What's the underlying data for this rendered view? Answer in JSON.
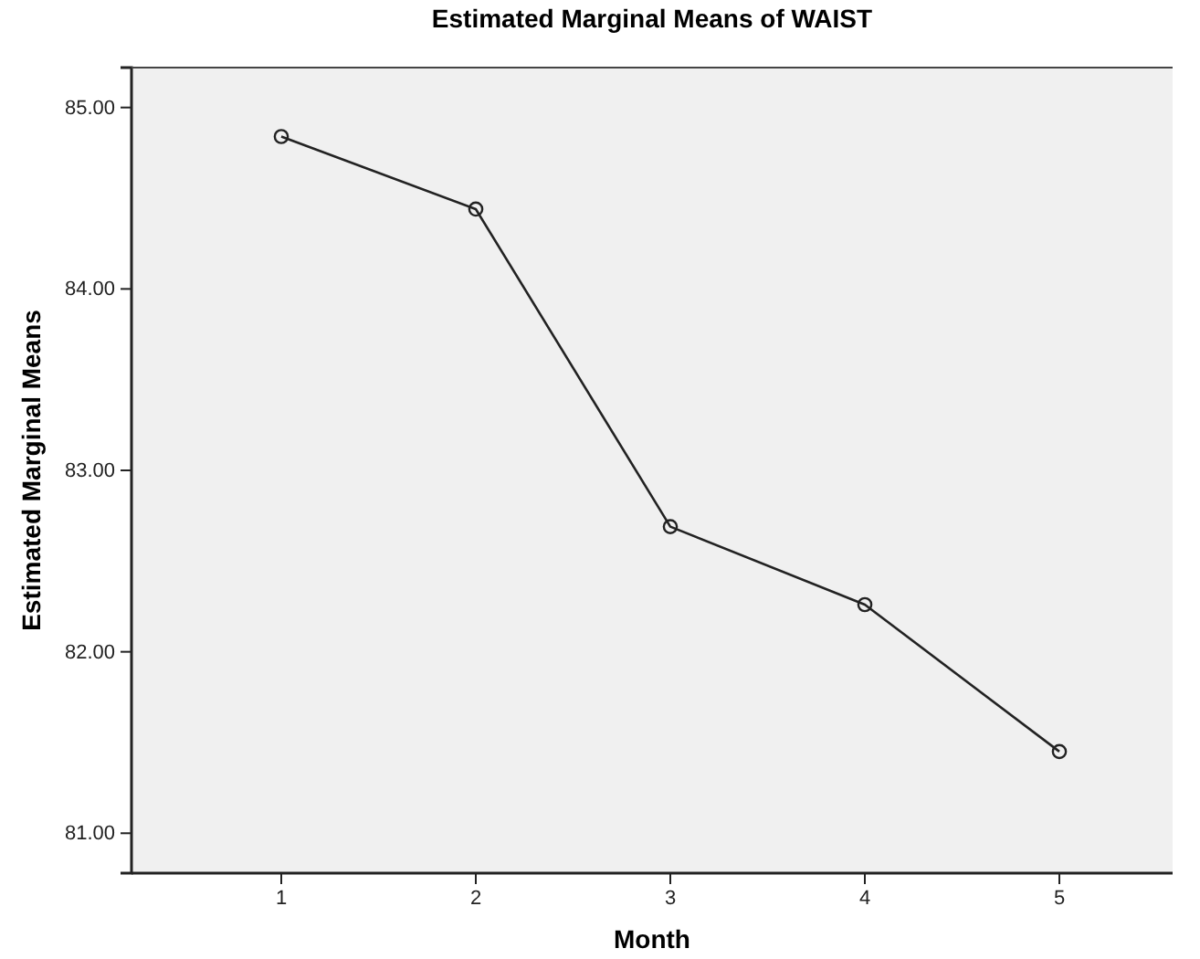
{
  "chart_data": {
    "type": "line",
    "title": "Estimated Marginal Means of WAIST",
    "xlabel": "Month",
    "ylabel": "Estimated Marginal Means",
    "categories": [
      "1",
      "2",
      "3",
      "4",
      "5"
    ],
    "series": [
      {
        "color": "#222222",
        "values": [
          84.84,
          84.44,
          82.69,
          82.26,
          81.45
        ]
      }
    ],
    "ylim": [
      80.78,
      85.22
    ],
    "yticks": [
      {
        "value": 81,
        "label": "81.00"
      },
      {
        "value": 82,
        "label": "82.00"
      },
      {
        "value": 83,
        "label": "83.00"
      },
      {
        "value": 84,
        "label": "84.00"
      },
      {
        "value": 85,
        "label": "85.00"
      }
    ],
    "grid": false,
    "marker": "circle",
    "line_style": "solid"
  }
}
